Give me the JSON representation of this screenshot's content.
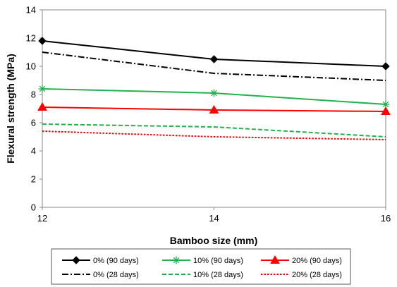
{
  "chart_data": {
    "type": "line",
    "title": "",
    "xlabel": "Bamboo size (mm)",
    "ylabel": "Flexural strength (MPa)",
    "x": [
      12,
      14,
      16
    ],
    "xticks": [
      12,
      14,
      16
    ],
    "ylim": [
      0,
      14
    ],
    "yticks": [
      0,
      2,
      4,
      6,
      8,
      10,
      12,
      14
    ],
    "grid": false,
    "legend_position": "bottom",
    "series": [
      {
        "name": "0% (90 days)",
        "values": [
          11.8,
          10.5,
          10.0
        ],
        "color": "#000000",
        "dash": "solid",
        "marker": "diamond"
      },
      {
        "name": "10% (90 days)",
        "values": [
          8.4,
          8.1,
          7.3
        ],
        "color": "#22b14c",
        "dash": "solid",
        "marker": "asterisk"
      },
      {
        "name": "20% (90 days)",
        "values": [
          7.1,
          6.9,
          6.8
        ],
        "color": "#ff0000",
        "dash": "solid",
        "marker": "triangle"
      },
      {
        "name": "0% (28 days)",
        "values": [
          11.0,
          9.5,
          9.0
        ],
        "color": "#000000",
        "dash": "dashdot",
        "marker": "none"
      },
      {
        "name": "10% (28 days)",
        "values": [
          5.9,
          5.7,
          5.0
        ],
        "color": "#22b14c",
        "dash": "dashed",
        "marker": "none"
      },
      {
        "name": "20% (28 days)",
        "values": [
          5.4,
          5.0,
          4.8
        ],
        "color": "#ff0000",
        "dash": "dotted",
        "marker": "none"
      }
    ]
  }
}
